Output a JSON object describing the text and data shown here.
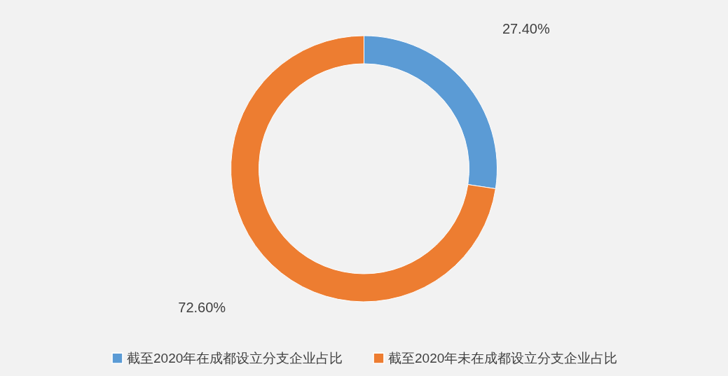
{
  "chart_data": {
    "type": "donut",
    "categories": [
      "截至2020年在成都设立分支企业占比",
      "截至2020年未在成都设立分支企业占比"
    ],
    "values": [
      27.4,
      72.6
    ],
    "colors": [
      "#5b9bd5",
      "#ed7d31"
    ],
    "value_labels": [
      "27.40%",
      "72.60%"
    ],
    "legend": "bottom"
  }
}
